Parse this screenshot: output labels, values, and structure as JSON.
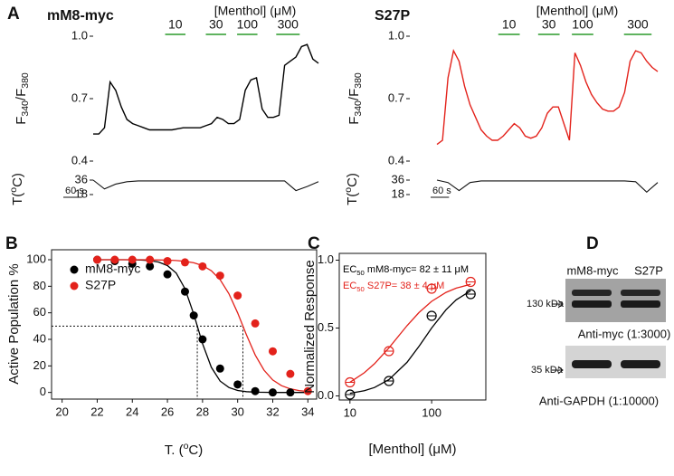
{
  "chart_data": [
    {
      "type": "line",
      "panel_label": "A",
      "title": "mM8-myc",
      "title_color": "#000000",
      "ylabel": [
        "F",
        "340",
        "/F",
        "380"
      ],
      "xlim": [
        0,
        720
      ],
      "ylim": [
        0.4,
        1.0
      ],
      "yticks": [
        {
          "value": 1.0,
          "label": "1.0"
        },
        {
          "value": 0.7,
          "label": "0.7"
        },
        {
          "value": 0.4,
          "label": "0.4"
        }
      ],
      "x": [
        0,
        18,
        36,
        54,
        72,
        90,
        108,
        126,
        144,
        162,
        180,
        198,
        216,
        234,
        252,
        270,
        288,
        306,
        324,
        342,
        360,
        378,
        396,
        414,
        432,
        450,
        468,
        486,
        504,
        522,
        540,
        558,
        576,
        594,
        612,
        630,
        648,
        666,
        684,
        702,
        720
      ],
      "series": [
        {
          "color": "#000000",
          "values": [
            0.53,
            0.53,
            0.56,
            0.78,
            0.74,
            0.66,
            0.6,
            0.58,
            0.57,
            0.56,
            0.55,
            0.55,
            0.55,
            0.55,
            0.55,
            0.555,
            0.56,
            0.56,
            0.56,
            0.56,
            0.57,
            0.58,
            0.61,
            0.6,
            0.58,
            0.58,
            0.6,
            0.74,
            0.79,
            0.8,
            0.65,
            0.61,
            0.61,
            0.62,
            0.86,
            0.88,
            0.9,
            0.95,
            0.96,
            0.89,
            0.87
          ]
        }
      ],
      "stimulus": {
        "label": "[Menthol] (μM)",
        "color": "#2a9a2a",
        "doses": [
          "10",
          "30",
          "100",
          "300"
        ],
        "periods": [
          [
            230,
            295
          ],
          [
            360,
            425
          ],
          [
            460,
            525
          ],
          [
            585,
            660
          ]
        ]
      },
      "temperature": {
        "label": [
          "T(",
          "o",
          "C)"
        ],
        "ylim": [
          18,
          36
        ],
        "yticks": [
          36,
          18
        ],
        "x": [
          0,
          36,
          72,
          108,
          144,
          180,
          216,
          252,
          288,
          324,
          360,
          396,
          432,
          468,
          504,
          540,
          576,
          612,
          648,
          684,
          720
        ],
        "values": [
          36,
          25,
          31,
          34,
          35,
          35,
          35,
          35,
          35,
          35,
          35,
          35,
          35,
          35,
          35,
          35,
          35,
          35,
          23,
          28,
          34
        ]
      },
      "scale_bar": {
        "label": "60 s",
        "value": 60
      }
    },
    {
      "type": "line",
      "title": "S27P",
      "title_color": "#e3221b",
      "ylabel": [
        "F",
        "340",
        "/F",
        "380"
      ],
      "xlim": [
        0,
        720
      ],
      "ylim": [
        0.4,
        1.0
      ],
      "yticks": [
        {
          "value": 1.0,
          "label": "1.0"
        },
        {
          "value": 0.7,
          "label": "0.7"
        },
        {
          "value": 0.4,
          "label": "0.4"
        }
      ],
      "x": [
        0,
        18,
        36,
        54,
        72,
        90,
        108,
        126,
        144,
        162,
        180,
        198,
        216,
        234,
        252,
        270,
        288,
        306,
        324,
        342,
        360,
        378,
        396,
        414,
        432,
        450,
        468,
        486,
        504,
        522,
        540,
        558,
        576,
        594,
        612,
        630,
        648,
        666,
        684,
        702,
        720
      ],
      "series": [
        {
          "color": "#e3221b",
          "values": [
            0.48,
            0.5,
            0.8,
            0.93,
            0.88,
            0.76,
            0.67,
            0.61,
            0.55,
            0.52,
            0.5,
            0.5,
            0.52,
            0.55,
            0.58,
            0.56,
            0.52,
            0.51,
            0.52,
            0.56,
            0.63,
            0.66,
            0.66,
            0.58,
            0.5,
            0.92,
            0.86,
            0.78,
            0.72,
            0.68,
            0.65,
            0.64,
            0.64,
            0.66,
            0.73,
            0.88,
            0.93,
            0.92,
            0.88,
            0.85,
            0.83
          ]
        }
      ],
      "stimulus": {
        "label": "[Menthol] (μM)",
        "color": "#2a9a2a",
        "doses": [
          "10",
          "30",
          "100",
          "300"
        ],
        "periods": [
          [
            200,
            270
          ],
          [
            330,
            400
          ],
          [
            440,
            510
          ],
          [
            610,
            700
          ]
        ]
      },
      "temperature": {
        "label": [
          "T(",
          "o",
          "C)"
        ],
        "ylim": [
          18,
          36
        ],
        "yticks": [
          36,
          18
        ],
        "x": [
          0,
          36,
          72,
          108,
          144,
          180,
          216,
          252,
          288,
          324,
          360,
          396,
          432,
          468,
          504,
          540,
          576,
          612,
          648,
          684,
          720
        ],
        "values": [
          36,
          33,
          23,
          33,
          35,
          35,
          35,
          35,
          35,
          35,
          35,
          35,
          35,
          35,
          35,
          35,
          35,
          35,
          34,
          21,
          33
        ]
      },
      "scale_bar": {
        "label": "60 s",
        "value": 60
      }
    },
    {
      "type": "scatter",
      "panel_label": "B",
      "marker": "filled",
      "xlabel": [
        "T. (",
        "o",
        "C)"
      ],
      "ylabel": "Active Population %",
      "xlim": [
        19.4,
        34.5
      ],
      "ylim": [
        -5,
        107.5
      ],
      "xticks": [
        20,
        22,
        24,
        26,
        28,
        30,
        32,
        34
      ],
      "yticks": [
        0,
        20,
        40,
        60,
        80,
        100
      ],
      "fit_x": [
        22,
        22.5,
        23,
        23.5,
        24,
        24.5,
        25,
        25.5,
        26,
        26.5,
        27,
        27.5,
        28,
        28.5,
        29,
        29.5,
        30,
        30.5,
        31,
        31.5,
        32,
        32.5,
        33,
        33.5,
        34
      ],
      "series": [
        {
          "name": "mM8-myc",
          "color": "#000000",
          "x": [
            22,
            23,
            24,
            25,
            26,
            27,
            27.5,
            28,
            29,
            30,
            31,
            32,
            33
          ],
          "values": [
            100,
            99,
            97,
            95,
            89,
            76,
            58,
            40,
            18,
            6,
            1,
            0,
            0
          ],
          "fit_values": [
            100,
            100,
            100,
            100,
            99.9,
            99.7,
            99.3,
            98.2,
            95.6,
            89.9,
            78.1,
            58.9,
            36.7,
            18.9,
            8.6,
            3.7,
            1.5,
            0.6,
            0.2,
            0.1,
            0,
            0,
            0,
            0,
            0
          ]
        },
        {
          "name": "S27P",
          "color": "#e3221b",
          "x": [
            22,
            23,
            24,
            25,
            26,
            27,
            28,
            29,
            30,
            31,
            32,
            33,
            34
          ],
          "values": [
            100,
            100,
            100,
            100,
            99,
            98,
            95,
            88,
            73,
            52,
            31,
            14,
            1
          ],
          "fit_values": [
            100,
            100,
            100,
            100,
            100,
            100,
            99.9,
            99.8,
            99.7,
            99.4,
            98.8,
            97.7,
            95.6,
            91.7,
            85,
            74.4,
            59.9,
            43.4,
            28.2,
            16.8,
            9.4,
            5.1,
            2.7,
            1.4,
            0.7
          ]
        }
      ],
      "reference": {
        "y": 50,
        "x": [
          27.7,
          30.3
        ]
      }
    },
    {
      "type": "scatter",
      "panel_label": "C",
      "marker": "open",
      "log_x": true,
      "xlabel": "[Menthol] (μM)",
      "ylabel": "Normalized Response",
      "xlim": [
        7.4,
        460
      ],
      "ylim": [
        -0.03,
        1.05
      ],
      "xticks": [
        10,
        100
      ],
      "yticks": [
        {
          "value": 0,
          "label": "0.0"
        },
        {
          "value": 0.5,
          "label": "0.5"
        },
        {
          "value": 1,
          "label": "1.0"
        }
      ],
      "fit_x": [
        10,
        15,
        20,
        30,
        50,
        70,
        100,
        150,
        200,
        300
      ],
      "series": [
        {
          "color": "#000000",
          "x": [
            10,
            30,
            100,
            300
          ],
          "values": [
            0.01,
            0.11,
            0.59,
            0.75
          ],
          "fit_values": [
            0.019,
            0.038,
            0.062,
            0.12,
            0.247,
            0.365,
            0.5,
            0.635,
            0.708,
            0.775
          ]
        },
        {
          "color": "#e3221b",
          "x": [
            10,
            30,
            100,
            300
          ],
          "values": [
            0.1,
            0.33,
            0.79,
            0.84
          ],
          "fit_values": [
            0.101,
            0.171,
            0.237,
            0.354,
            0.517,
            0.614,
            0.697,
            0.763,
            0.794,
            0.823
          ]
        }
      ],
      "annotations": [
        {
          "parts": [
            "EC",
            "50",
            " mM8-myc= 82 ± 11 μM"
          ],
          "color": "#000000"
        },
        {
          "parts": [
            "EC",
            "50",
            " S27P= 38 ± 4 μM"
          ],
          "color": "#e3221b"
        }
      ]
    }
  ],
  "blot": {
    "panel_label": "D",
    "lanes": [
      "mM8-myc",
      "S27P"
    ],
    "upper": {
      "marker": "130 kDa",
      "antibody": "Anti-myc (1:3000)"
    },
    "lower": {
      "marker": "35 kDa",
      "antibody": "Anti-GAPDH (1:10000)"
    }
  }
}
